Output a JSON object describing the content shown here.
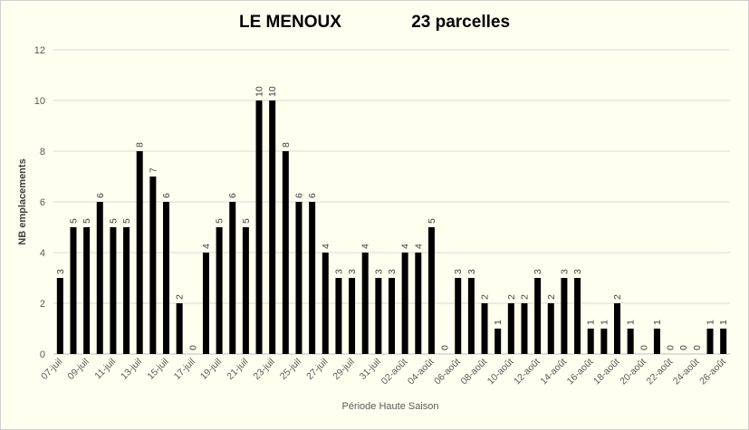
{
  "chart_data": {
    "type": "bar",
    "title": "LE MENOUX",
    "subtitle": "23 parcelles",
    "xlabel": "Période Haute Saison",
    "ylabel": "NB emplacements",
    "ylim": [
      0,
      12
    ],
    "yticks": [
      0,
      2,
      4,
      6,
      8,
      10,
      12
    ],
    "grid": true,
    "legend": "none",
    "bar_color": "#000000",
    "categories": [
      "07-juil",
      "08-juil",
      "09-juil",
      "10-juil",
      "11-juil",
      "12-juil",
      "13-juil",
      "14-juil",
      "15-juil",
      "16-juil",
      "17-juil",
      "18-juil",
      "19-juil",
      "20-juil",
      "21-juil",
      "22-juil",
      "23-juil",
      "24-juil",
      "25-juil",
      "26-juil",
      "27-juil",
      "28-juil",
      "29-juil",
      "30-juil",
      "31-juil",
      "01-août",
      "02-août",
      "03-août",
      "04-août",
      "05-août",
      "06-août",
      "07-août",
      "08-août",
      "09-août",
      "10-août",
      "11-août",
      "12-août",
      "13-août",
      "14-août",
      "15-août",
      "16-août",
      "17-août",
      "18-août",
      "19-août",
      "20-août",
      "21-août",
      "22-août",
      "23-août",
      "24-août",
      "25-août",
      "26-août"
    ],
    "tick_labels": [
      "07-juil",
      "09-juil",
      "11-juil",
      "13-juil",
      "15-juil",
      "17-juil",
      "19-juil",
      "21-juil",
      "23-juil",
      "25-juil",
      "27-juil",
      "29-juil",
      "31-juil",
      "02-août",
      "04-août",
      "06-août",
      "08-août",
      "10-août",
      "12-août",
      "14-août",
      "16-août",
      "18-août",
      "20-août",
      "22-août",
      "24-août",
      "26-août"
    ],
    "values": [
      3,
      5,
      5,
      6,
      5,
      5,
      8,
      7,
      6,
      2,
      0,
      4,
      5,
      6,
      5,
      10,
      10,
      8,
      6,
      6,
      4,
      3,
      3,
      4,
      3,
      3,
      4,
      4,
      5,
      0,
      3,
      3,
      2,
      1,
      2,
      2,
      3,
      2,
      3,
      3,
      1,
      1,
      2,
      1,
      0,
      1,
      0,
      0,
      0,
      1,
      1
    ]
  }
}
